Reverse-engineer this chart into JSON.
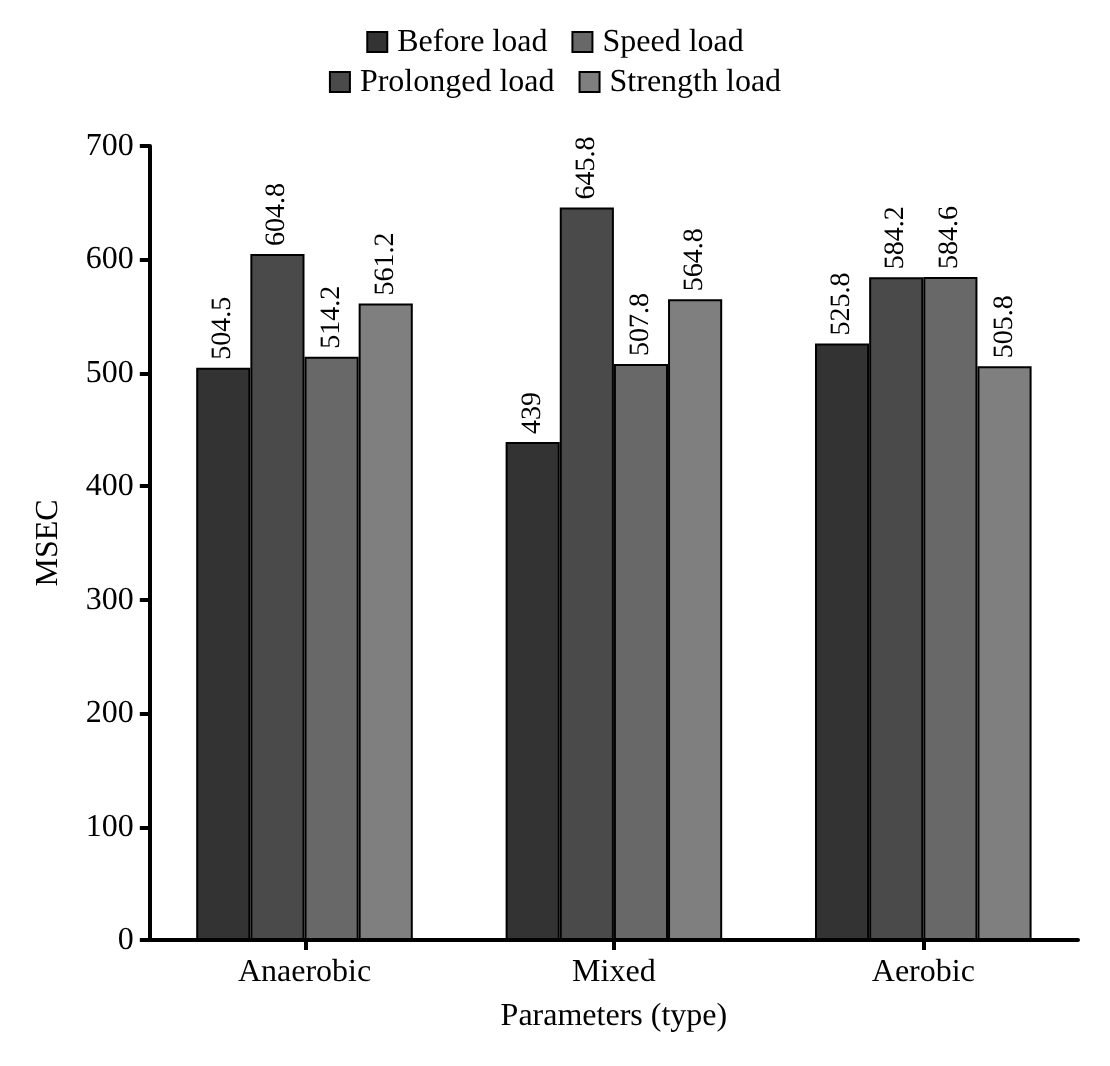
{
  "chart_data": {
    "type": "bar",
    "xlabel": "Parameters (type)",
    "ylabel": "MSEC",
    "categories": [
      "Anaerobic",
      "Mixed",
      "Aerobic"
    ],
    "series": [
      {
        "name": "Before load",
        "color": "#333333",
        "values": [
          504.5,
          439,
          525.8
        ]
      },
      {
        "name": "Prolonged load",
        "color": "#4a4a4a",
        "values": [
          604.8,
          645.8,
          584.2
        ]
      },
      {
        "name": "Speed load",
        "color": "#686868",
        "values": [
          514.2,
          507.8,
          584.6
        ]
      },
      {
        "name": "Strength load",
        "color": "#7f7f7f",
        "values": [
          561.2,
          564.8,
          505.8
        ]
      }
    ],
    "ylim": [
      0,
      700
    ],
    "yticks": [
      0,
      100,
      200,
      300,
      400,
      500,
      600,
      700
    ],
    "grid": false,
    "legend": "top",
    "data_labels": true
  }
}
